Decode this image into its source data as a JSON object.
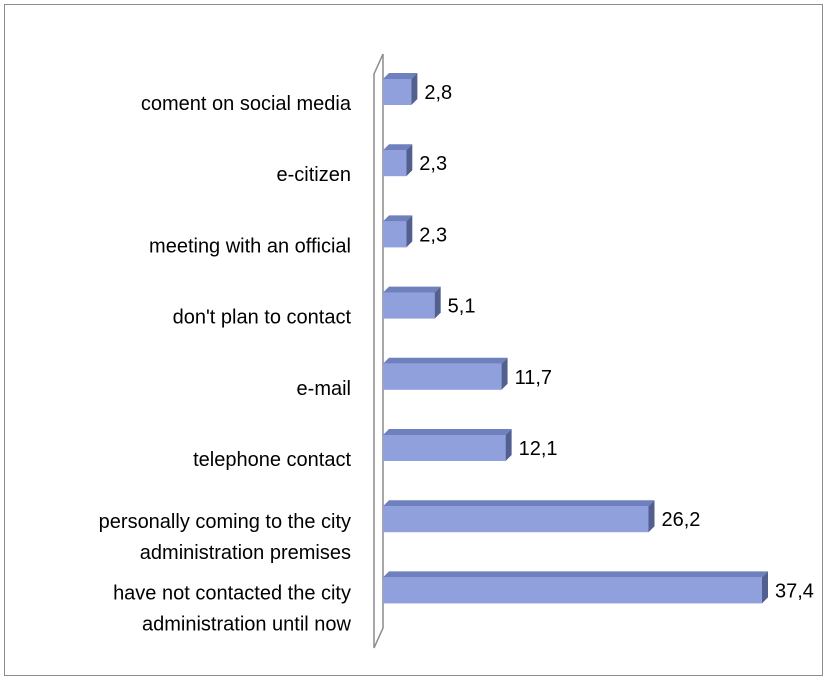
{
  "chart_data": {
    "type": "bar",
    "orientation": "horizontal",
    "categories": [
      "coment on social media",
      "e-citizen",
      "meeting with an official",
      "don't plan to contact",
      "e-mail ",
      "telephone contact ",
      "personally coming to the city administration premises",
      "have not contacted the city administration until now"
    ],
    "category_lines": [
      [
        "coment on social media"
      ],
      [
        "e-citizen"
      ],
      [
        "meeting with an official"
      ],
      [
        "don't plan to contact"
      ],
      [
        "e-mail "
      ],
      [
        "telephone contact "
      ],
      [
        "personally coming to the city",
        "administration premises"
      ],
      [
        "have not contacted the city",
        "administration until now"
      ]
    ],
    "values": [
      2.8,
      2.3,
      2.3,
      5.1,
      11.7,
      12.1,
      26.2,
      37.4
    ],
    "value_labels": [
      "2,8",
      "2,3",
      "2,3",
      "5,1",
      "11,7",
      "12,1",
      "26,2",
      "37,4"
    ],
    "xlim": [
      0,
      38
    ],
    "grid": false,
    "legend": "none",
    "bar_style": "3d",
    "colors": {
      "bar_front": "#8fa0dc",
      "bar_top": "#6f80bf",
      "bar_side": "#52608f",
      "wall": "#8c8c8c"
    }
  }
}
